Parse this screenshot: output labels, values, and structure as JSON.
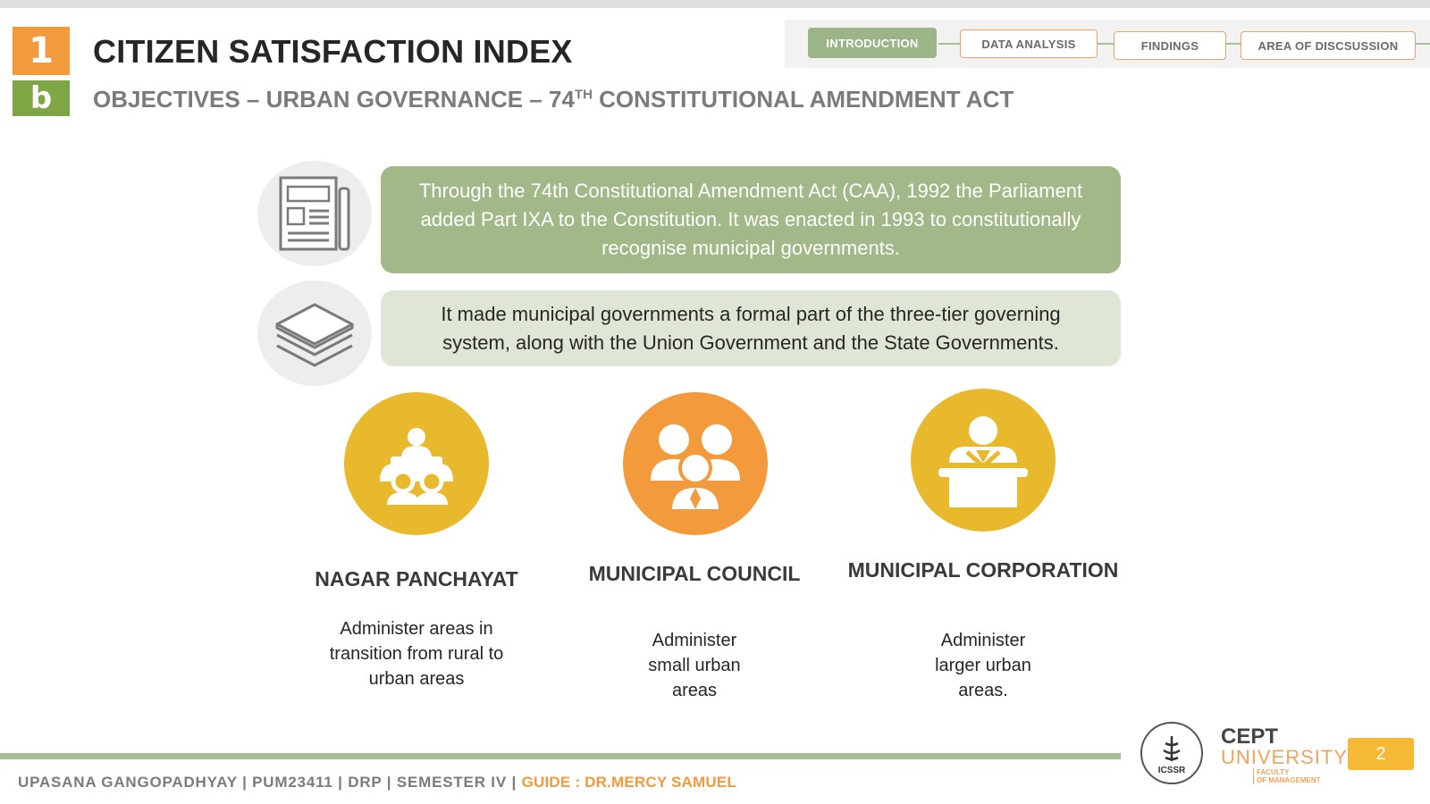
{
  "header": {
    "badge_number": "1",
    "badge_letter": "b",
    "title": "CITIZEN SATISFACTION INDEX",
    "subtitle_prefix": "OBJECTIVES – URBAN GOVERNANCE – 74",
    "subtitle_sup": "TH",
    "subtitle_suffix": " CONSTITUTIONAL AMENDMENT ACT"
  },
  "nav": {
    "tabs": [
      {
        "label": "INTRODUCTION",
        "active": true
      },
      {
        "label": "DATA ANALYSIS",
        "active": false
      },
      {
        "label": "FINDINGS",
        "active": false
      },
      {
        "label": "AREA OF DISCSUSSION",
        "active": false
      }
    ]
  },
  "content": {
    "box1_text": "Through the 74th Constitutional Amendment Act (CAA), 1992 the Parliament added Part IXA to the Constitution. It was enacted in 1993 to constitutionally recognise municipal governments.",
    "box2_text": "It made municipal governments a formal part of the three-tier governing system, along with the Union Government and the State Governments.",
    "box1_icon": "newspaper-icon",
    "box2_icon": "layers-icon"
  },
  "bodies": [
    {
      "title": "NAGAR PANCHAYAT",
      "desc": "Administer areas in transition from rural to urban areas",
      "icon": "meeting-table-icon",
      "color": "#e8b92d"
    },
    {
      "title": "MUNICIPAL COUNCIL",
      "desc": "Administer small urban areas",
      "icon": "group-icon",
      "color": "#f39a3d"
    },
    {
      "title": "MUNICIPAL CORPORATION",
      "desc": "Administer larger urban areas.",
      "icon": "council-desk-icon",
      "color": "#e8b92d"
    }
  ],
  "footer": {
    "author": "UPASANA GANGOPADHYAY | PUM23411 | DRP | SEMESTER IV | ",
    "guide": "GUIDE : DR.MERCY SAMUEL",
    "icssr_label": "ICSSR",
    "cept_line1": "CEPT",
    "cept_line2": "UNIVERSITY",
    "cept_line3a": "FACULTY",
    "cept_line3b": "OF MANAGEMENT",
    "page_number": "2"
  },
  "colors": {
    "orange": "#f39a3d",
    "green": "#7fa544",
    "sage": "#a2b888",
    "gold": "#e8b92d"
  }
}
